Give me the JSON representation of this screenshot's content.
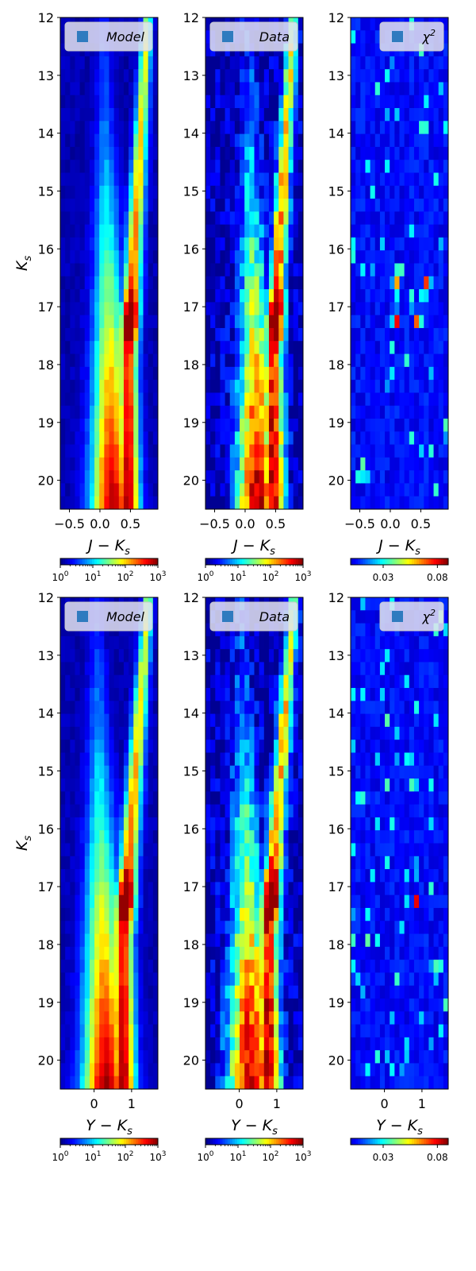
{
  "chart_data": [
    {
      "type": "heatmap",
      "row": 0,
      "col": 0,
      "kind": "density",
      "legend": "Model",
      "xlabel": "J − K",
      "xlabel_sub": "s",
      "ylabel": "K",
      "ylabel_sub": "s",
      "xlim": [
        -0.65,
        0.95
      ],
      "ylim": [
        20.5,
        12.0
      ],
      "xticks": [
        -0.5,
        0.0,
        0.5
      ],
      "xtick_labels": [
        "−0.5",
        "0.0",
        "0.5"
      ],
      "yticks": [
        12,
        13,
        14,
        15,
        16,
        17,
        18,
        19,
        20
      ],
      "ytick_labels": [
        "12",
        "13",
        "14",
        "15",
        "16",
        "17",
        "18",
        "19",
        "20"
      ],
      "colorbar": {
        "scale": "log",
        "range": [
          1,
          1000
        ],
        "labels": [
          "10",
          "10",
          "10",
          "10"
        ],
        "label_exps": [
          "0",
          "1",
          "2",
          "3"
        ]
      }
    },
    {
      "type": "heatmap",
      "row": 0,
      "col": 1,
      "kind": "density",
      "legend": "Data",
      "xlabel": "J − K",
      "xlabel_sub": "s",
      "xlim": [
        -0.65,
        0.95
      ],
      "ylim": [
        20.5,
        12.0
      ],
      "xticks": [
        -0.5,
        0.0,
        0.5
      ],
      "xtick_labels": [
        "−0.5",
        "0.0",
        "0.5"
      ],
      "yticks": [
        12,
        13,
        14,
        15,
        16,
        17,
        18,
        19,
        20
      ],
      "ytick_labels": [
        "12",
        "13",
        "14",
        "15",
        "16",
        "17",
        "18",
        "19",
        "20"
      ],
      "colorbar": {
        "scale": "log",
        "range": [
          1,
          1000
        ],
        "labels": [
          "10",
          "10",
          "10",
          "10"
        ],
        "label_exps": [
          "0",
          "1",
          "2",
          "3"
        ]
      }
    },
    {
      "type": "heatmap",
      "row": 0,
      "col": 2,
      "kind": "chi2",
      "legend": "χ",
      "legend_sup": "2",
      "xlabel": "J − K",
      "xlabel_sub": "s",
      "xlim": [
        -0.65,
        0.95
      ],
      "ylim": [
        20.5,
        12.0
      ],
      "xticks": [
        -0.5,
        0.0,
        0.5
      ],
      "xtick_labels": [
        "−0.5",
        "0.0",
        "0.5"
      ],
      "yticks": [
        12,
        13,
        14,
        15,
        16,
        17,
        18,
        19,
        20
      ],
      "ytick_labels": [
        "12",
        "13",
        "14",
        "15",
        "16",
        "17",
        "18",
        "19",
        "20"
      ],
      "colorbar": {
        "scale": "linear",
        "range": [
          0.0,
          0.09
        ],
        "ticks": [
          0.03,
          0.08
        ],
        "tick_labels": [
          "0.03",
          "0.08"
        ]
      }
    },
    {
      "type": "heatmap",
      "row": 1,
      "col": 0,
      "kind": "density",
      "legend": "Model",
      "xlabel": "Y − K",
      "xlabel_sub": "s",
      "ylabel": "K",
      "ylabel_sub": "s",
      "xlim": [
        -0.9,
        1.7
      ],
      "ylim": [
        20.5,
        12.0
      ],
      "xticks": [
        0,
        1
      ],
      "xtick_labels": [
        "0",
        "1"
      ],
      "yticks": [
        12,
        13,
        14,
        15,
        16,
        17,
        18,
        19,
        20
      ],
      "ytick_labels": [
        "12",
        "13",
        "14",
        "15",
        "16",
        "17",
        "18",
        "19",
        "20"
      ],
      "colorbar": {
        "scale": "log",
        "range": [
          1,
          1000
        ],
        "labels": [
          "10",
          "10",
          "10",
          "10"
        ],
        "label_exps": [
          "0",
          "1",
          "2",
          "3"
        ]
      }
    },
    {
      "type": "heatmap",
      "row": 1,
      "col": 1,
      "kind": "density",
      "legend": "Data",
      "xlabel": "Y − K",
      "xlabel_sub": "s",
      "xlim": [
        -0.9,
        1.7
      ],
      "ylim": [
        20.5,
        12.0
      ],
      "xticks": [
        0,
        1
      ],
      "xtick_labels": [
        "0",
        "1"
      ],
      "yticks": [
        12,
        13,
        14,
        15,
        16,
        17,
        18,
        19,
        20
      ],
      "ytick_labels": [
        "12",
        "13",
        "14",
        "15",
        "16",
        "17",
        "18",
        "19",
        "20"
      ],
      "colorbar": {
        "scale": "log",
        "range": [
          1,
          1000
        ],
        "labels": [
          "10",
          "10",
          "10",
          "10"
        ],
        "label_exps": [
          "0",
          "1",
          "2",
          "3"
        ]
      }
    },
    {
      "type": "heatmap",
      "row": 1,
      "col": 2,
      "kind": "chi2",
      "legend": "χ",
      "legend_sup": "2",
      "xlabel": "Y − K",
      "xlabel_sub": "s",
      "xlim": [
        -0.9,
        1.7
      ],
      "ylim": [
        20.5,
        12.0
      ],
      "xticks": [
        0,
        1
      ],
      "xtick_labels": [
        "0",
        "1"
      ],
      "yticks": [
        12,
        13,
        14,
        15,
        16,
        17,
        18,
        19,
        20
      ],
      "ytick_labels": [
        "12",
        "13",
        "14",
        "15",
        "16",
        "17",
        "18",
        "19",
        "20"
      ],
      "colorbar": {
        "scale": "linear",
        "range": [
          0.0,
          0.09
        ],
        "ticks": [
          0.03,
          0.08
        ],
        "tick_labels": [
          "0.03",
          "0.08"
        ]
      }
    }
  ]
}
